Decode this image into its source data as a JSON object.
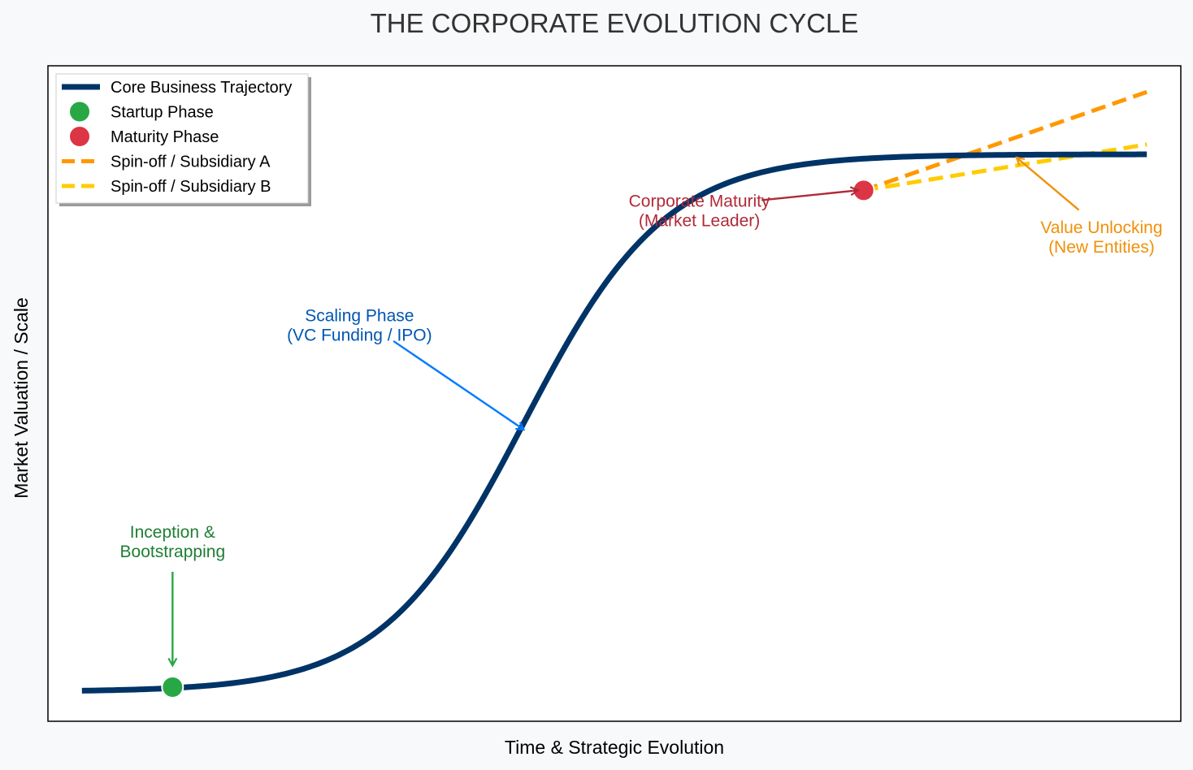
{
  "chart_data": {
    "type": "line",
    "title": "THE CORPORATE EVOLUTION CYCLE",
    "xlabel": "Time & Strategic Evolution",
    "ylabel": "Market Valuation / Scale",
    "xlim": [
      0,
      10
    ],
    "ylim": [
      0,
      10
    ],
    "x_ticks_visible": false,
    "y_ticks_visible": false,
    "grid": false,
    "legend_position": "top-left",
    "colors": {
      "background": "#f8f9fa",
      "plot_background": "#ffffff",
      "core": "#003366",
      "startup": "#28a745",
      "maturity": "#dc3545",
      "spinoff_a": "#ff9800",
      "spinoff_b": "#ffcc00",
      "anno_startup": "#1e7e34",
      "anno_scaling": "#0056b3",
      "anno_scaling_arrow": "#007bff",
      "anno_maturity": "#b02a37",
      "anno_value": "#f0900a",
      "title": "#333333"
    },
    "series": [
      {
        "name": "Core Business Trajectory",
        "kind": "line",
        "style": "solid",
        "color": "#003366",
        "sigmoid": {
          "base": 0.45,
          "amplitude": 8.2,
          "steepness": 1.6,
          "midpoint": 4.2
        },
        "x_range": [
          0.3,
          9.7
        ]
      },
      {
        "name": "Startup Phase",
        "kind": "marker",
        "color": "#28a745",
        "x": 1.1,
        "y": 0.52
      },
      {
        "name": "Maturity Phase",
        "kind": "marker",
        "color": "#dc3545",
        "x": 7.2,
        "y": 8.1
      },
      {
        "name": "Spin-off / Subsidiary A",
        "kind": "line",
        "style": "dashed",
        "color": "#ff9800",
        "x": [
          7.2,
          9.7
        ],
        "y": [
          8.1,
          9.6
        ]
      },
      {
        "name": "Spin-off / Subsidiary B",
        "kind": "line",
        "style": "dashed",
        "color": "#ffcc00",
        "x": [
          7.2,
          9.7
        ],
        "y": [
          8.1,
          8.8
        ]
      }
    ],
    "annotations": [
      {
        "id": "inception",
        "lines": [
          "Inception &",
          "Bootstrapping"
        ],
        "color": "#1e7e34",
        "text_xy": [
          1.1,
          2.8
        ],
        "arrow_to": [
          1.1,
          0.85
        ]
      },
      {
        "id": "scaling",
        "lines": [
          "Scaling Phase",
          "(VC Funding / IPO)"
        ],
        "color": "#0056b3",
        "arrow_color": "#007bff",
        "text_xy": [
          2.75,
          6.1
        ],
        "arrow_from": [
          3.05,
          5.8
        ],
        "arrow_to": [
          4.2,
          4.45
        ]
      },
      {
        "id": "maturity",
        "lines": [
          "Corporate Maturity",
          "(Market Leader)"
        ],
        "color": "#b02a37",
        "text_xy": [
          5.75,
          7.85
        ],
        "arrow_from": [
          6.3,
          7.95
        ],
        "arrow_to": [
          7.15,
          8.1
        ]
      },
      {
        "id": "value",
        "lines": [
          "Value Unlocking",
          "(New Entities)"
        ],
        "color": "#f0900a",
        "text_xy": [
          9.3,
          7.45
        ],
        "arrow_from": [
          9.1,
          7.8
        ],
        "arrow_to": [
          8.55,
          8.6
        ]
      }
    ]
  }
}
